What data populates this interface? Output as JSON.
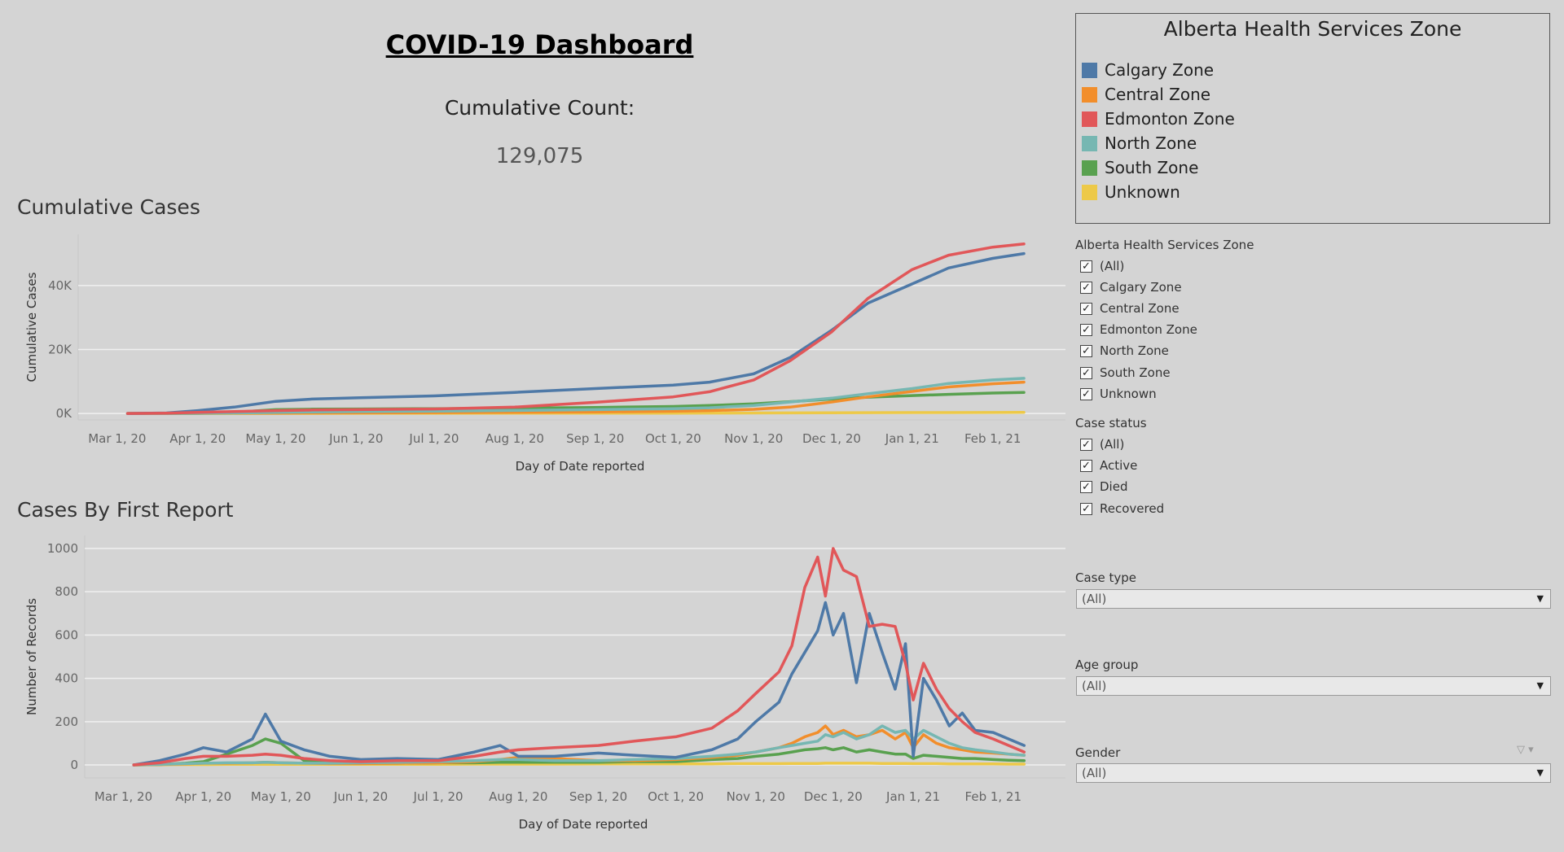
{
  "dashboard": {
    "title": "COVID-19 Dashboard",
    "count_label": "Cumulative Count:",
    "count_value": "129,075"
  },
  "legend": {
    "title": "Alberta Health Services Zone",
    "items": [
      {
        "label": "Calgary Zone",
        "color": "#4e79a7"
      },
      {
        "label": "Central Zone",
        "color": "#f28e2b"
      },
      {
        "label": "Edmonton Zone",
        "color": "#e15759"
      },
      {
        "label": "North Zone",
        "color": "#76b7b2"
      },
      {
        "label": "South Zone",
        "color": "#59a14f"
      },
      {
        "label": "Unknown",
        "color": "#edc948"
      }
    ]
  },
  "filters": {
    "zone": {
      "label": "Alberta Health Services Zone",
      "options": [
        "(All)",
        "Calgary Zone",
        "Central Zone",
        "Edmonton Zone",
        "North Zone",
        "South Zone",
        "Unknown"
      ]
    },
    "case_status": {
      "label": "Case status",
      "options": [
        "(All)",
        "Active",
        "Died",
        "Recovered"
      ]
    },
    "check_glyph": "✓",
    "case_type": {
      "label": "Case type",
      "value": "(All)"
    },
    "age_group": {
      "label": "Age group",
      "value": "(All)"
    },
    "gender": {
      "label": "Gender",
      "value": "(All)"
    },
    "dropdown_arrow": "▼",
    "gender_tools": "▽ ▾"
  },
  "chart_data": [
    {
      "type": "line",
      "title": "Cumulative Cases",
      "xlabel": "Day of Date reported",
      "ylabel": "Cumulative Cases",
      "x_tick_labels": [
        "Mar 1, 20",
        "Apr 1, 20",
        "May 1, 20",
        "Jun 1, 20",
        "Jul 1, 20",
        "Aug 1, 20",
        "Sep 1, 20",
        "Oct 1, 20",
        "Nov 1, 20",
        "Dec 1, 20",
        "Jan 1, 21",
        "Feb 1, 21"
      ],
      "y_ticks": [
        0,
        20000,
        40000
      ],
      "y_tick_labels": [
        "0K",
        "20K",
        "40K"
      ],
      "ylim": [
        -2000,
        56000
      ],
      "x": [
        "2020-03-05",
        "2020-03-20",
        "2020-04-01",
        "2020-04-15",
        "2020-05-01",
        "2020-05-15",
        "2020-06-01",
        "2020-07-01",
        "2020-08-01",
        "2020-09-01",
        "2020-10-01",
        "2020-10-15",
        "2020-11-01",
        "2020-11-15",
        "2020-12-01",
        "2020-12-15",
        "2021-01-01",
        "2021-01-15",
        "2021-02-01",
        "2021-02-13"
      ],
      "series": [
        {
          "name": "Calgary Zone",
          "color": "#4e79a7",
          "values": [
            0,
            150,
            900,
            2000,
            3800,
            4500,
            4900,
            5500,
            6600,
            7800,
            8900,
            9800,
            12400,
            17500,
            26000,
            34500,
            40500,
            45500,
            48500,
            50000
          ]
        },
        {
          "name": "Central Zone",
          "color": "#f28e2b",
          "values": [
            0,
            10,
            40,
            80,
            120,
            160,
            200,
            280,
            380,
            500,
            700,
            900,
            1300,
            2000,
            3600,
            5200,
            6900,
            8300,
            9300,
            9800
          ]
        },
        {
          "name": "Edmonton Zone",
          "color": "#e15759",
          "values": [
            0,
            80,
            350,
            600,
            900,
            1100,
            1200,
            1400,
            2000,
            3500,
            5200,
            6800,
            10500,
            16500,
            25500,
            36000,
            45000,
            49500,
            52000,
            53000
          ]
        },
        {
          "name": "North Zone",
          "color": "#76b7b2",
          "values": [
            0,
            20,
            60,
            150,
            350,
            500,
            600,
            750,
            950,
            1200,
            1500,
            1800,
            2500,
            3600,
            4800,
            6200,
            7800,
            9400,
            10500,
            11000
          ]
        },
        {
          "name": "South Zone",
          "color": "#59a14f",
          "values": [
            0,
            10,
            40,
            400,
            1200,
            1350,
            1400,
            1500,
            1700,
            1900,
            2200,
            2500,
            3000,
            3700,
            4500,
            5100,
            5600,
            6000,
            6400,
            6600
          ]
        },
        {
          "name": "Unknown",
          "color": "#edc948",
          "values": [
            0,
            5,
            10,
            20,
            30,
            40,
            50,
            60,
            80,
            100,
            120,
            140,
            170,
            200,
            230,
            260,
            290,
            300,
            320,
            330
          ]
        }
      ]
    },
    {
      "type": "line",
      "title": "Cases By First Report",
      "xlabel": "Day of Date reported",
      "ylabel": "Number of Records",
      "x_tick_labels": [
        "Mar 1, 20",
        "Apr 1, 20",
        "May 1, 20",
        "Jun 1, 20",
        "Jul 1, 20",
        "Aug 1, 20",
        "Sep 1, 20",
        "Oct 1, 20",
        "Nov 1, 20",
        "Dec 1, 20",
        "Jan 1, 21",
        "Feb 1, 21"
      ],
      "y_ticks": [
        0,
        200,
        400,
        600,
        800,
        1000
      ],
      "y_tick_labels": [
        "0",
        "200",
        "400",
        "600",
        "800",
        "1000"
      ],
      "ylim": [
        -60,
        1060
      ],
      "x": [
        "2020-03-05",
        "2020-03-15",
        "2020-03-25",
        "2020-04-01",
        "2020-04-10",
        "2020-04-20",
        "2020-04-25",
        "2020-05-01",
        "2020-05-10",
        "2020-05-20",
        "2020-06-01",
        "2020-06-15",
        "2020-07-01",
        "2020-07-15",
        "2020-07-25",
        "2020-08-01",
        "2020-08-15",
        "2020-09-01",
        "2020-09-15",
        "2020-10-01",
        "2020-10-15",
        "2020-10-25",
        "2020-11-01",
        "2020-11-10",
        "2020-11-15",
        "2020-11-20",
        "2020-11-25",
        "2020-11-28",
        "2020-12-01",
        "2020-12-05",
        "2020-12-10",
        "2020-12-15",
        "2020-12-20",
        "2020-12-25",
        "2020-12-29",
        "2021-01-01",
        "2021-01-05",
        "2021-01-10",
        "2021-01-15",
        "2021-01-20",
        "2021-01-25",
        "2021-02-01",
        "2021-02-07",
        "2021-02-13"
      ],
      "series": [
        {
          "name": "Calgary Zone",
          "color": "#4e79a7",
          "values": [
            0,
            20,
            50,
            80,
            60,
            120,
            235,
            110,
            70,
            40,
            25,
            30,
            25,
            60,
            90,
            40,
            40,
            55,
            45,
            35,
            70,
            120,
            200,
            290,
            420,
            520,
            620,
            750,
            600,
            700,
            380,
            700,
            520,
            350,
            560,
            40,
            400,
            300,
            180,
            240,
            160,
            150,
            120,
            90
          ]
        },
        {
          "name": "Central Zone",
          "color": "#f28e2b",
          "values": [
            0,
            2,
            5,
            8,
            8,
            10,
            12,
            10,
            8,
            6,
            6,
            8,
            10,
            15,
            25,
            35,
            30,
            20,
            20,
            25,
            35,
            45,
            60,
            80,
            100,
            130,
            150,
            180,
            140,
            160,
            130,
            140,
            160,
            120,
            150,
            80,
            140,
            100,
            80,
            70,
            60,
            55,
            50,
            45
          ]
        },
        {
          "name": "Edmonton Zone",
          "color": "#e15759",
          "values": [
            0,
            10,
            30,
            40,
            40,
            45,
            50,
            45,
            30,
            20,
            15,
            20,
            20,
            40,
            60,
            70,
            80,
            90,
            110,
            130,
            170,
            250,
            330,
            430,
            550,
            820,
            960,
            780,
            1000,
            900,
            870,
            640,
            650,
            640,
            470,
            300,
            470,
            350,
            260,
            200,
            150,
            120,
            90,
            60
          ]
        },
        {
          "name": "North Zone",
          "color": "#76b7b2",
          "values": [
            0,
            3,
            6,
            8,
            10,
            10,
            12,
            10,
            8,
            8,
            10,
            12,
            15,
            20,
            25,
            25,
            20,
            20,
            25,
            30,
            40,
            50,
            60,
            80,
            90,
            100,
            110,
            140,
            130,
            150,
            120,
            140,
            180,
            150,
            160,
            120,
            160,
            130,
            100,
            80,
            70,
            60,
            50,
            45
          ]
        },
        {
          "name": "South Zone",
          "color": "#59a14f",
          "values": [
            0,
            2,
            8,
            15,
            50,
            90,
            120,
            100,
            20,
            10,
            8,
            8,
            10,
            10,
            12,
            12,
            12,
            12,
            15,
            15,
            25,
            30,
            40,
            50,
            60,
            70,
            75,
            80,
            70,
            80,
            60,
            70,
            60,
            50,
            50,
            30,
            45,
            40,
            35,
            30,
            30,
            25,
            22,
            20
          ]
        },
        {
          "name": "Unknown",
          "color": "#edc948",
          "values": [
            0,
            1,
            2,
            2,
            3,
            3,
            3,
            3,
            3,
            3,
            3,
            3,
            3,
            4,
            4,
            4,
            4,
            5,
            5,
            5,
            5,
            6,
            6,
            6,
            7,
            7,
            7,
            8,
            8,
            8,
            8,
            8,
            7,
            7,
            7,
            6,
            6,
            6,
            5,
            5,
            5,
            5,
            4,
            4
          ]
        }
      ]
    }
  ]
}
